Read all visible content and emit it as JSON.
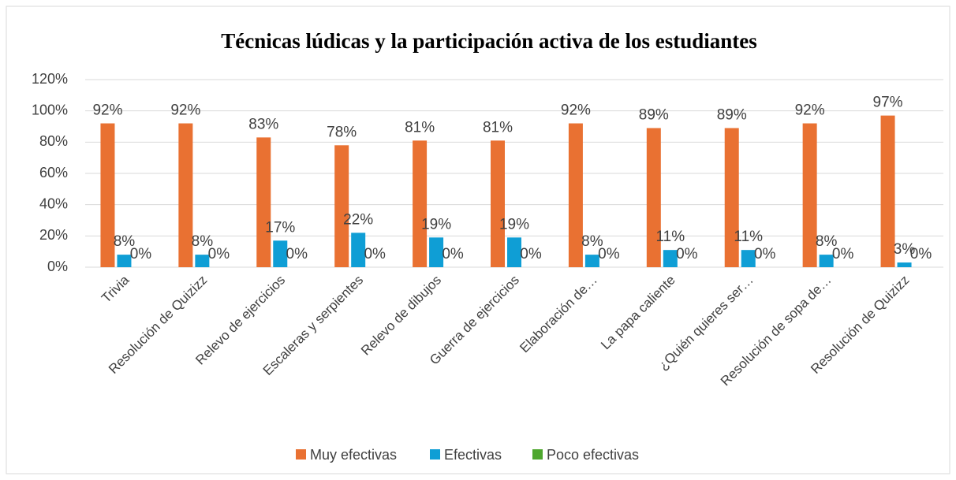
{
  "chart_data": {
    "type": "bar",
    "title": "Técnicas lúdicas y la participación activa de los estudiantes",
    "categories": [
      "Trivia",
      "Resolución de Quizizz",
      "Relevo de ejercicios",
      "Escaleras y serpientes",
      "Relevo de dibujos",
      "Guerra de ejercicios",
      "Elaboración de…",
      "La papa caliente",
      "¿Quién quieres ser…",
      "Resolución de sopa de…",
      "Resolución de Quizizz"
    ],
    "series": [
      {
        "name": "Muy efectivas",
        "color": "#E97132",
        "values": [
          92,
          92,
          83,
          78,
          81,
          81,
          92,
          89,
          89,
          92,
          97
        ],
        "value_labels": [
          "92%",
          "92%",
          "83%",
          "78%",
          "81%",
          "81%",
          "92%",
          "89%",
          "89%",
          "92%",
          "97%"
        ]
      },
      {
        "name": "Efectivas",
        "color": "#0F9ED5",
        "values": [
          8,
          8,
          17,
          22,
          19,
          19,
          8,
          11,
          11,
          8,
          3
        ],
        "value_labels": [
          "8%",
          "8%",
          "17%",
          "22%",
          "19%",
          "19%",
          "8%",
          "11%",
          "11%",
          "8%",
          "3%"
        ]
      },
      {
        "name": "Poco efectivas",
        "color": "#4EA72E",
        "values": [
          0,
          0,
          0,
          0,
          0,
          0,
          0,
          0,
          0,
          0,
          0
        ],
        "value_labels": [
          "0%",
          "0%",
          "0%",
          "0%",
          "0%",
          "0%",
          "0%",
          "0%",
          "0%",
          "0%",
          "0%"
        ]
      }
    ],
    "ylim": [
      0,
      120
    ],
    "yticks": [
      {
        "value": 0,
        "label": "0%"
      },
      {
        "value": 20,
        "label": "20%"
      },
      {
        "value": 40,
        "label": "40%"
      },
      {
        "value": 60,
        "label": "60%"
      },
      {
        "value": 80,
        "label": "80%"
      },
      {
        "value": 100,
        "label": "100%"
      },
      {
        "value": 120,
        "label": "120%"
      }
    ],
    "grid": true,
    "legend": "bottom"
  }
}
